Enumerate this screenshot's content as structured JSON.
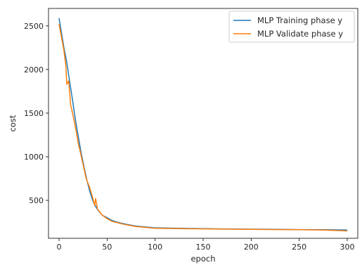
{
  "chart_data": {
    "type": "line",
    "title": "",
    "xlabel": "epoch",
    "ylabel": "cost",
    "xlim": [
      -11,
      311
    ],
    "ylim": [
      65,
      2700
    ],
    "xticks": [
      0,
      50,
      100,
      150,
      200,
      250,
      300
    ],
    "yticks": [
      500,
      1000,
      1500,
      2000,
      2500
    ],
    "grid": false,
    "legend_position": "top-right",
    "series": [
      {
        "name": "MLP Training phase y",
        "color": "#1f77b4",
        "x": [
          0,
          2,
          5,
          8,
          11,
          14,
          17,
          20,
          23,
          26,
          29,
          32,
          35,
          38,
          41,
          45,
          50,
          55,
          60,
          70,
          80,
          90,
          100,
          125,
          150,
          175,
          200,
          225,
          250,
          275,
          300
        ],
        "y": [
          2590,
          2450,
          2250,
          2080,
          1860,
          1650,
          1420,
          1230,
          1040,
          880,
          730,
          600,
          500,
          430,
          380,
          330,
          300,
          270,
          250,
          225,
          205,
          195,
          185,
          180,
          175,
          172,
          170,
          168,
          165,
          163,
          160
        ]
      },
      {
        "name": "MLP Validate phase y",
        "color": "#ff7f0e",
        "x": [
          0,
          2,
          5,
          7,
          8,
          10,
          12,
          14,
          17,
          20,
          22,
          24,
          26,
          28,
          30,
          32,
          35,
          37,
          38,
          40,
          42,
          45,
          50,
          55,
          60,
          70,
          80,
          90,
          100,
          125,
          150,
          175,
          200,
          225,
          250,
          275,
          300
        ],
        "y": [
          2520,
          2400,
          2220,
          2050,
          1830,
          1870,
          1600,
          1500,
          1340,
          1150,
          1060,
          960,
          860,
          760,
          700,
          640,
          530,
          440,
          520,
          400,
          370,
          330,
          290,
          260,
          245,
          220,
          200,
          190,
          180,
          175,
          173,
          170,
          168,
          165,
          163,
          160,
          150
        ]
      }
    ]
  }
}
